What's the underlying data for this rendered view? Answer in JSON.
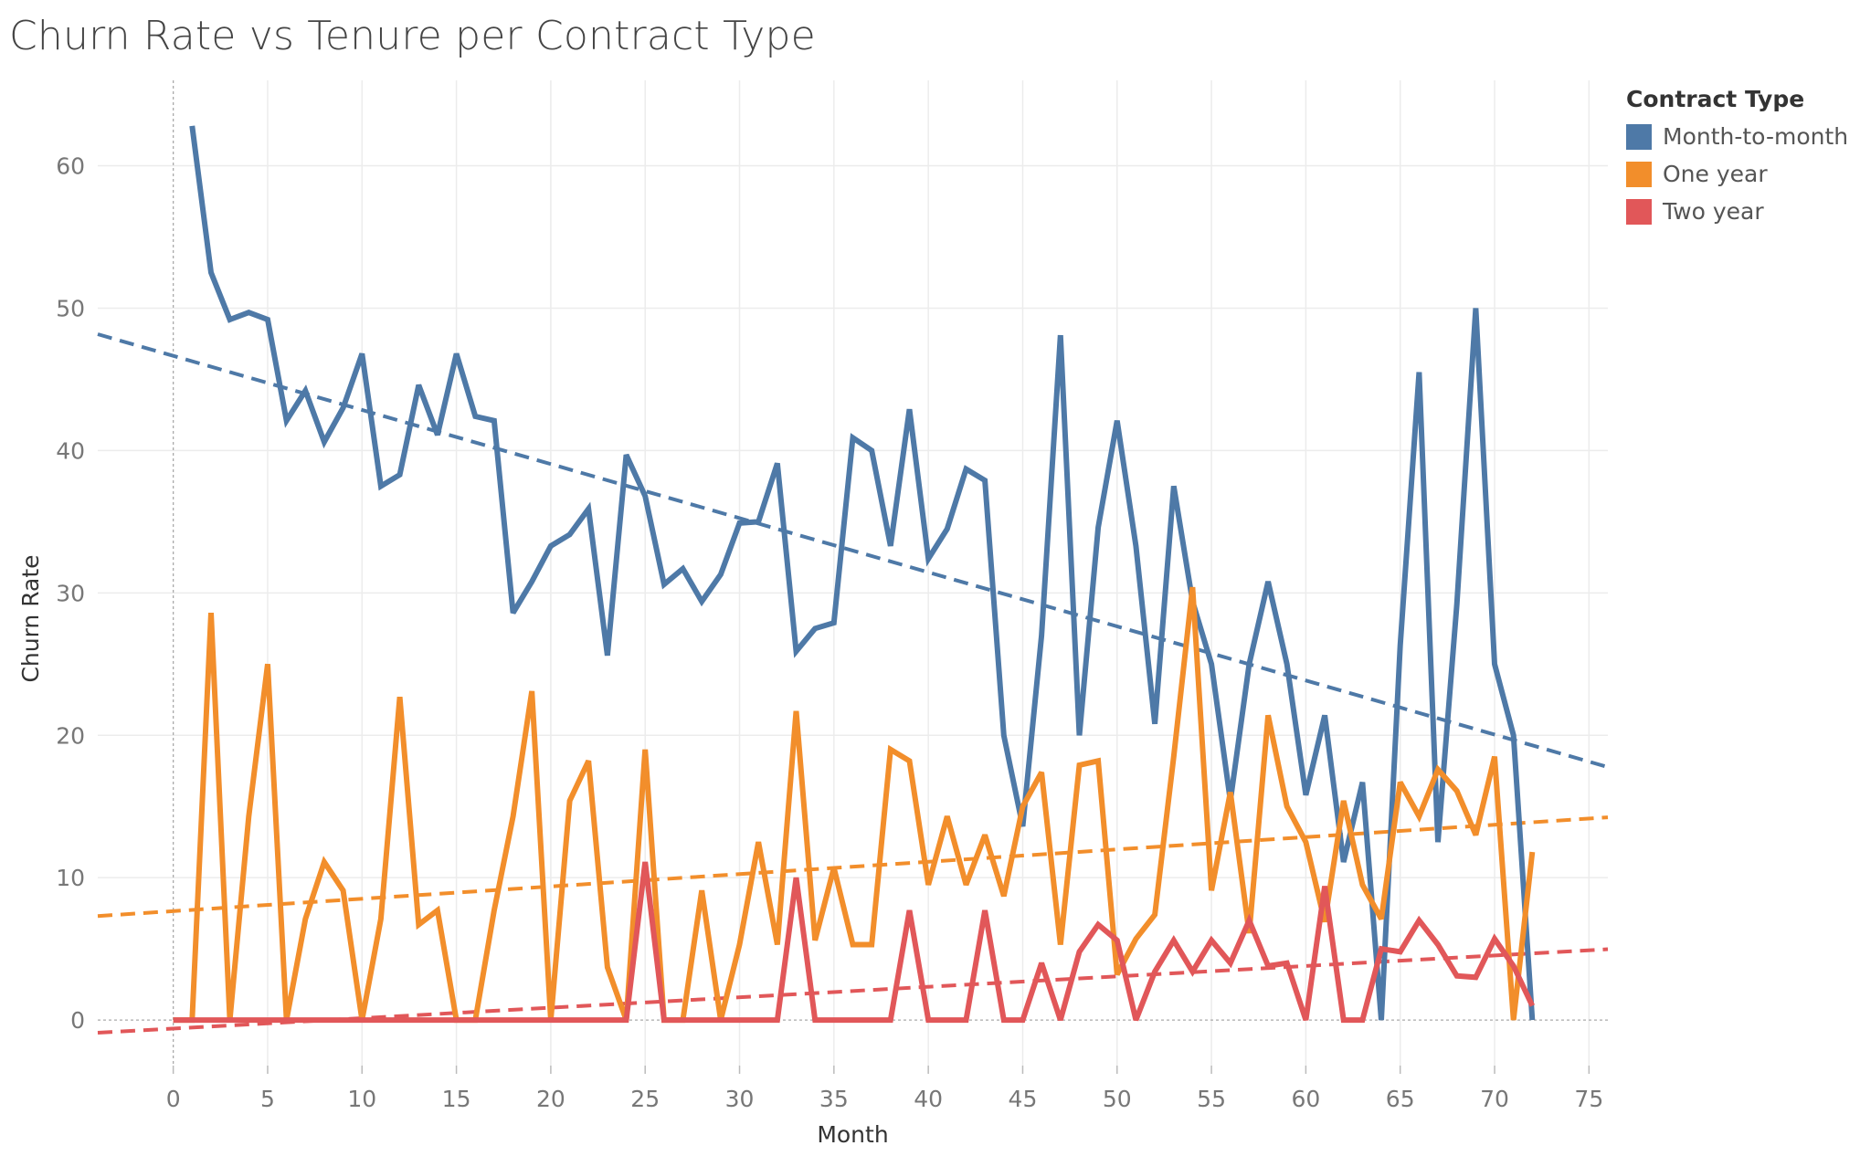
{
  "chart_data": {
    "type": "line",
    "title": "Churn Rate vs Tenure per Contract Type",
    "xlabel": "Month",
    "ylabel": "Churn Rate",
    "xlim": [
      -4,
      76
    ],
    "ylim": [
      -3.2,
      66
    ],
    "x_ticks": [
      0,
      5,
      10,
      15,
      20,
      25,
      30,
      35,
      40,
      45,
      50,
      55,
      60,
      65,
      70,
      75
    ],
    "y_ticks": [
      0,
      10,
      20,
      30,
      40,
      50,
      60
    ],
    "grid": true,
    "legend_title": "Contract Type",
    "legend_position": "top-right",
    "series": [
      {
        "name": "Month-to-month",
        "color": "#4e79a7",
        "x": [
          1,
          2,
          3,
          4,
          5,
          6,
          7,
          8,
          9,
          10,
          11,
          12,
          13,
          14,
          15,
          16,
          17,
          18,
          19,
          20,
          21,
          22,
          23,
          24,
          25,
          26,
          27,
          28,
          29,
          30,
          31,
          32,
          33,
          34,
          35,
          36,
          37,
          38,
          39,
          40,
          41,
          42,
          43,
          44,
          45,
          46,
          47,
          48,
          49,
          50,
          51,
          52,
          53,
          54,
          55,
          56,
          57,
          58,
          59,
          60,
          61,
          62,
          63,
          64,
          65,
          66,
          67,
          68,
          69,
          70,
          71,
          72
        ],
        "values": [
          62.8,
          52.5,
          49.2,
          49.7,
          49.2,
          42.1,
          44.2,
          40.6,
          43.0,
          46.8,
          37.5,
          38.3,
          44.6,
          41.1,
          46.8,
          42.4,
          42.1,
          28.6,
          30.8,
          33.3,
          34.1,
          35.9,
          25.6,
          39.7,
          36.8,
          30.6,
          31.7,
          29.4,
          31.3,
          34.9,
          35.0,
          39.1,
          25.9,
          27.5,
          27.9,
          40.9,
          40.0,
          33.3,
          42.9,
          32.4,
          34.5,
          38.7,
          37.9,
          20.0,
          13.6,
          27.0,
          48.1,
          20.0,
          34.6,
          42.1,
          33.3,
          20.8,
          37.5,
          29.4,
          25.0,
          15.4,
          25.0,
          30.8,
          25.0,
          15.8,
          21.4,
          11.1,
          16.7,
          0.0,
          26.3,
          45.5,
          12.5,
          29.2,
          50.0,
          25.0,
          20.0,
          0.0
        ],
        "trend": [
          46.65,
          18.15
        ]
      },
      {
        "name": "One year",
        "color": "#f28e2b",
        "x": [
          0,
          1,
          2,
          3,
          4,
          5,
          6,
          7,
          8,
          9,
          10,
          11,
          12,
          13,
          14,
          15,
          16,
          17,
          18,
          19,
          20,
          21,
          22,
          23,
          24,
          25,
          26,
          27,
          28,
          29,
          30,
          31,
          32,
          33,
          34,
          35,
          36,
          37,
          38,
          39,
          40,
          41,
          42,
          43,
          44,
          45,
          46,
          47,
          48,
          49,
          50,
          51,
          52,
          53,
          54,
          55,
          56,
          57,
          58,
          59,
          60,
          61,
          62,
          63,
          64,
          65,
          66,
          67,
          68,
          69,
          70,
          71,
          72
        ],
        "values": [
          0.0,
          0.0,
          28.6,
          0.0,
          14.3,
          25.0,
          0.0,
          7.1,
          11.1,
          9.1,
          0.0,
          7.1,
          22.7,
          6.7,
          7.7,
          0.0,
          0.0,
          7.7,
          14.3,
          23.1,
          0.0,
          15.4,
          18.2,
          3.7,
          0.0,
          19.0,
          0.0,
          0.0,
          9.1,
          0.0,
          5.3,
          12.5,
          5.3,
          21.7,
          5.6,
          10.7,
          5.3,
          5.3,
          19.0,
          18.2,
          9.5,
          14.3,
          9.5,
          13.0,
          8.7,
          15.0,
          17.4,
          5.3,
          17.9,
          18.2,
          3.2,
          5.7,
          7.4,
          18.5,
          30.4,
          9.1,
          16.0,
          6.1,
          21.4,
          15.0,
          12.5,
          6.9,
          15.4,
          9.5,
          7.1,
          16.7,
          14.3,
          17.6,
          16.1,
          13.0,
          18.5,
          0.0,
          11.8
        ],
        "trend": [
          7.65,
          14.15
        ]
      },
      {
        "name": "Two year",
        "color": "#e15759",
        "x": [
          0,
          1,
          2,
          3,
          4,
          5,
          6,
          7,
          8,
          9,
          10,
          11,
          12,
          13,
          14,
          15,
          16,
          17,
          18,
          19,
          20,
          21,
          22,
          23,
          24,
          25,
          26,
          27,
          28,
          29,
          30,
          31,
          32,
          33,
          34,
          35,
          36,
          37,
          38,
          39,
          40,
          41,
          42,
          43,
          44,
          45,
          46,
          47,
          48,
          49,
          50,
          51,
          52,
          53,
          54,
          55,
          56,
          57,
          58,
          59,
          60,
          61,
          62,
          63,
          64,
          65,
          66,
          67,
          68,
          69,
          70,
          71,
          72
        ],
        "values": [
          0,
          0,
          0,
          0,
          0,
          0,
          0,
          0,
          0,
          0,
          0,
          0,
          0,
          0,
          0,
          0,
          0,
          0,
          0,
          0,
          0,
          0,
          0,
          0,
          0,
          11.1,
          0,
          0,
          0,
          0,
          0,
          0,
          0,
          10.0,
          0,
          0,
          0,
          0,
          0,
          7.7,
          0,
          0,
          0,
          7.7,
          0,
          0,
          4.0,
          0,
          4.8,
          6.7,
          5.6,
          0,
          3.4,
          5.6,
          3.4,
          5.6,
          4.0,
          7.0,
          3.8,
          4.0,
          0,
          9.4,
          0,
          0,
          5.0,
          4.8,
          7.0,
          5.3,
          3.1,
          3.0,
          5.7,
          3.8,
          1.0
        ],
        "trend": [
          -0.6,
          4.9
        ]
      }
    ]
  }
}
